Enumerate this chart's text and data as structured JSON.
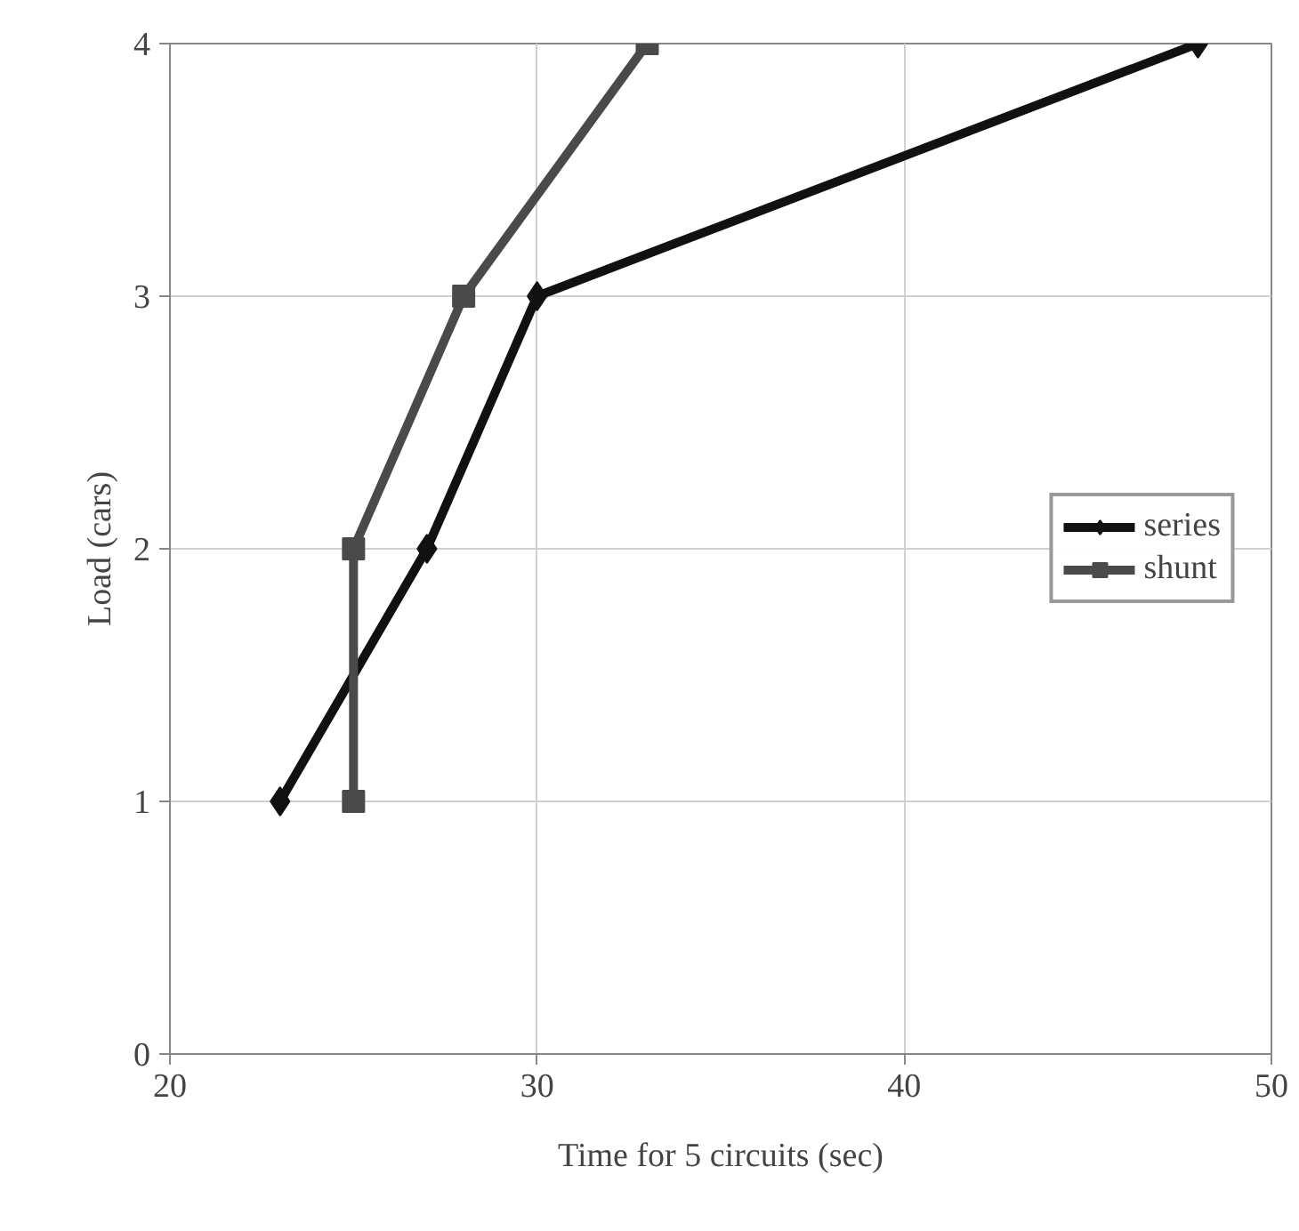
{
  "chart_data": {
    "type": "line",
    "xlabel": "Time for 5 circuits (sec)",
    "ylabel": "Load (cars)",
    "xlim": [
      20,
      50
    ],
    "xticks": [
      20,
      30,
      40,
      50
    ],
    "ylim": [
      0,
      4
    ],
    "yticks": [
      0,
      1,
      2,
      3,
      4
    ],
    "grid": true,
    "legend": "right",
    "line_style": "solid",
    "series": [
      {
        "name": "series",
        "color": "#111111",
        "marker": "diamond",
        "x": [
          23,
          27,
          30,
          48
        ],
        "values": [
          1,
          2,
          3,
          4
        ]
      },
      {
        "name": "shunt",
        "color": "#4a4a4a",
        "marker": "square",
        "x": [
          25,
          25,
          28,
          33
        ],
        "values": [
          1,
          2,
          3,
          4
        ]
      }
    ]
  }
}
